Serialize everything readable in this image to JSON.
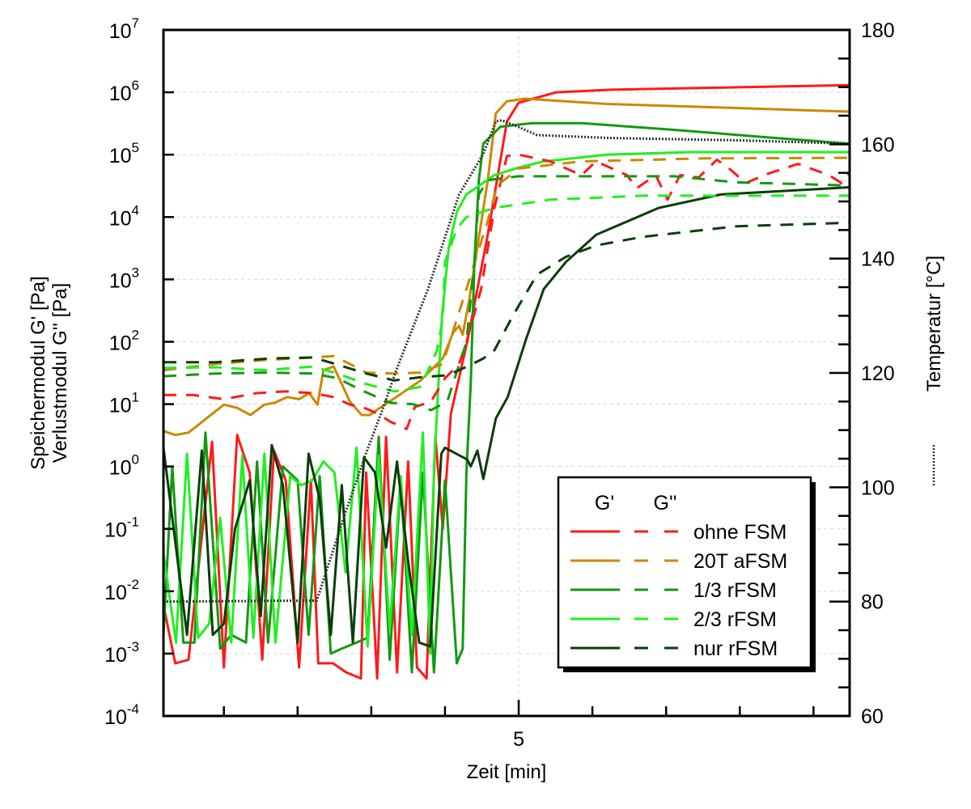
{
  "chart_data": {
    "type": "line",
    "title": "",
    "xlabel": "Zeit [min]",
    "ylabel_lines": [
      "Speichermodul G' [Pa]",
      "Verlustmodul G'' [Pa]"
    ],
    "y2label": "Temperatur [°C]",
    "xlim": [
      0.18,
      9.49
    ],
    "ylim": [
      0.0001,
      10000000
    ],
    "yscale": "log",
    "y2lim": [
      60,
      180
    ],
    "grid": "on (decade lines and x=5)",
    "x_ticks": [
      1,
      2,
      3,
      4,
      5,
      6,
      7,
      8,
      9
    ],
    "x_tick_labels": [
      {
        "value": 5,
        "label": "5"
      }
    ],
    "y_tick_exponents": [
      -4,
      -3,
      -2,
      -1,
      0,
      1,
      2,
      3,
      4,
      5,
      6,
      7
    ],
    "y_tick_base": "10",
    "y2_ticks": [
      60,
      80,
      100,
      120,
      140,
      160,
      180
    ],
    "legend": {
      "placement": "bottom-right",
      "header_solid": "G'",
      "header_dashed": "G''",
      "entries": [
        "ohne FSM",
        "20T aFSM",
        "1/3 rFSM",
        "2/3 rFSM",
        "nur rFSM"
      ]
    },
    "colors": {
      "ohne FSM": "#ff1a1a",
      "20T aFSM": "#cc8800",
      "1/3 rFSM": "#119911",
      "2/3 rFSM": "#22ee22",
      "nur rFSM": "#0a3d0a",
      "temperature": "#333333"
    },
    "series": [
      {
        "name": "ohne FSM",
        "modulus": "G'",
        "style": "solid",
        "x": [
          0.18,
          0.34,
          0.52,
          0.84,
          1.0,
          1.18,
          1.35,
          1.52,
          1.68,
          1.84,
          2.02,
          2.18,
          2.28,
          2.48,
          2.66,
          2.86,
          2.93,
          3.08,
          3.2,
          3.35,
          3.5,
          3.62,
          3.75,
          3.87,
          3.97,
          4.08,
          4.3,
          4.58,
          4.84,
          5.0,
          5.51,
          6.26,
          7.9,
          9.49
        ],
        "y": [
          0.006,
          0.0007,
          0.0008,
          2.5,
          0.0006,
          3.2,
          0.8,
          0.0008,
          1.8,
          0.6,
          0.0006,
          0.6,
          0.0007,
          0.0007,
          0.0005,
          0.0004,
          0.8,
          0.0004,
          3,
          0.0005,
          1.2,
          0.0006,
          0.0004,
          3,
          0.1,
          7,
          98,
          5200,
          340000,
          680000,
          1000000,
          1100000,
          1200000,
          1300000
        ]
      },
      {
        "name": "20T aFSM",
        "modulus": "G'",
        "style": "solid",
        "x": [
          0.18,
          0.34,
          0.52,
          1.0,
          1.18,
          1.36,
          1.55,
          1.69,
          1.86,
          2.02,
          2.16,
          2.27,
          2.35,
          2.49,
          2.71,
          2.87,
          2.98,
          3.09,
          3.34,
          3.67,
          3.97,
          4.11,
          4.19,
          4.24,
          4.33,
          4.58,
          4.69,
          4.84,
          5.09,
          6.19,
          7.95,
          9.49
        ],
        "y": [
          3.7,
          3.2,
          3.5,
          9.8,
          8.7,
          6.7,
          9.8,
          10.5,
          13,
          12,
          15,
          9.8,
          35,
          40,
          11,
          6.7,
          6.7,
          8.3,
          13,
          24,
          54,
          140,
          180,
          130,
          480,
          39000,
          460000,
          720000,
          790000,
          650000,
          560000,
          490000
        ]
      },
      {
        "name": "1/3 rFSM",
        "modulus": "G'",
        "style": "solid",
        "x": [
          0.18,
          0.3,
          0.45,
          0.6,
          0.75,
          0.95,
          1.1,
          1.3,
          1.45,
          1.6,
          1.8,
          2.0,
          2.15,
          2.3,
          2.45,
          2.6,
          2.8,
          2.95,
          3.1,
          3.25,
          3.4,
          3.55,
          3.7,
          3.85,
          4.0,
          4.16,
          4.24,
          4.29,
          4.35,
          4.4,
          4.46,
          4.52,
          4.75,
          5.18,
          5.85,
          7.11,
          8.37,
          9.49
        ],
        "y": [
          0.002,
          1.0,
          0.0015,
          0.0015,
          3.5,
          0.0012,
          0.002,
          0.0015,
          1.2,
          0.0015,
          1.0,
          0.6,
          0.002,
          0.7,
          0.001,
          0.0012,
          0.0015,
          0.0018,
          3,
          0.0008,
          0.6,
          0.0005,
          0.8,
          0.0005,
          0.6,
          0.0007,
          0.0012,
          0.8,
          22,
          2000,
          39000,
          150000,
          280000,
          320000,
          320000,
          250000,
          190000,
          150000
        ]
      },
      {
        "name": "2/3 rFSM",
        "modulus": "G'",
        "style": "solid",
        "x": [
          0.18,
          0.35,
          0.5,
          0.65,
          0.8,
          0.95,
          1.1,
          1.25,
          1.4,
          1.55,
          1.7,
          1.9,
          2.05,
          2.2,
          2.35,
          2.5,
          2.65,
          2.8,
          2.95,
          3.1,
          3.25,
          3.4,
          3.55,
          3.7,
          3.8,
          3.85,
          3.96,
          4.05,
          4.16,
          4.29,
          4.67,
          5.0,
          5.34,
          6.19,
          7.33,
          9.49
        ],
        "y": [
          0.04,
          0.0015,
          1.6,
          0.0018,
          0.003,
          0.15,
          0.0015,
          1.5,
          0.0018,
          1.6,
          0.0015,
          0.7,
          0.5,
          0.6,
          1.2,
          0.8,
          0.02,
          2,
          0.0013,
          1.5,
          0.0025,
          0.7,
          0.002,
          3.5,
          0.001,
          0.9,
          260,
          3200,
          12000,
          23000,
          47000,
          62000,
          78000,
          100000,
          110000,
          110000
        ]
      },
      {
        "name": "nur rFSM",
        "modulus": "G'",
        "style": "solid",
        "x": [
          0.18,
          0.35,
          0.5,
          0.7,
          0.85,
          1.0,
          1.15,
          1.35,
          1.5,
          1.65,
          1.8,
          2.0,
          2.15,
          2.3,
          2.45,
          2.6,
          2.75,
          2.9,
          3.05,
          3.2,
          3.35,
          3.5,
          3.65,
          3.8,
          3.95,
          4.0,
          4.3,
          4.35,
          4.44,
          4.52,
          4.69,
          4.85,
          5.1,
          5.34,
          5.64,
          6.05,
          6.9,
          7.74,
          9.49
        ],
        "y": [
          2,
          0.05,
          0.002,
          1.8,
          0.002,
          0.003,
          0.1,
          0.6,
          0.004,
          2.2,
          0.5,
          0.0015,
          1.6,
          0.3,
          0.002,
          0.5,
          0.0015,
          1.4,
          0.8,
          0.05,
          1.2,
          0.03,
          0.0015,
          0.0013,
          1.6,
          2,
          1.3,
          1.0,
          1.8,
          0.63,
          5.9,
          13,
          110,
          700,
          1900,
          5200,
          14000,
          23000,
          30000
        ]
      },
      {
        "name": "ohne FSM",
        "modulus": "G''",
        "style": "dashed",
        "x": [
          0.18,
          0.59,
          1.0,
          1.44,
          1.84,
          2.21,
          2.49,
          2.71,
          2.93,
          3.09,
          3.26,
          3.48,
          3.59,
          3.81,
          4.0,
          4.19,
          4.29,
          4.49,
          4.67,
          4.84,
          5.0,
          5.43,
          5.85,
          6.05,
          6.47,
          6.6,
          6.86,
          7.02,
          7.19,
          7.44,
          7.69,
          7.87,
          8.08,
          8.37,
          8.79,
          9.21,
          9.38,
          9.49
        ],
        "y": [
          14,
          14,
          12,
          15,
          16,
          15,
          13,
          9.8,
          8.5,
          7,
          5.2,
          4,
          9,
          11,
          26,
          44,
          98,
          700,
          14000,
          95000,
          100000,
          78000,
          47000,
          78000,
          47000,
          29000,
          47000,
          19000,
          47000,
          43000,
          83000,
          58000,
          35000,
          49000,
          71000,
          47000,
          35000,
          52000
        ]
      },
      {
        "name": "20T aFSM",
        "modulus": "G''",
        "style": "dashed",
        "x": [
          0.18,
          0.89,
          1.55,
          2.21,
          2.49,
          2.71,
          2.93,
          3.31,
          3.67,
          3.97,
          4.29,
          4.58,
          4.71,
          5.0,
          5.85,
          7.53,
          9.49
        ],
        "y": [
          35,
          44,
          51,
          56,
          59,
          44,
          32,
          31,
          32,
          44,
          700,
          8700,
          32000,
          60000,
          78000,
          87000,
          89000
        ]
      },
      {
        "name": "1/3 rFSM",
        "modulus": "G''",
        "style": "dashed",
        "x": [
          0.18,
          0.89,
          1.62,
          2.21,
          2.54,
          2.9,
          3.26,
          3.56,
          3.81,
          4.03,
          4.29,
          4.4,
          4.46,
          4.58,
          5.0,
          6.26,
          7.11,
          7.95,
          9.49
        ],
        "y": [
          28,
          31,
          32,
          31,
          26,
          16,
          10.5,
          10,
          8,
          11,
          98,
          2000,
          23000,
          39000,
          45000,
          45000,
          45000,
          36000,
          32000
        ]
      },
      {
        "name": "2/3 rFSM",
        "modulus": "G''",
        "style": "dashed",
        "x": [
          0.18,
          0.89,
          1.55,
          2.21,
          2.54,
          2.93,
          3.31,
          3.67,
          3.89,
          3.97,
          4.0,
          4.16,
          4.29,
          4.67,
          5.43,
          6.68,
          9.49
        ],
        "y": [
          38,
          39,
          35,
          40,
          31,
          21,
          16,
          19,
          72,
          230,
          1900,
          6500,
          10000,
          14000,
          19000,
          22000,
          22000
        ]
      },
      {
        "name": "nur rFSM",
        "modulus": "G''",
        "style": "dashed",
        "x": [
          0.18,
          0.89,
          1.62,
          2.21,
          2.57,
          2.93,
          3.31,
          3.67,
          4.03,
          4.3,
          4.52,
          4.67,
          4.92,
          5.25,
          5.64,
          6.05,
          6.68,
          7.95,
          9.49
        ],
        "y": [
          47,
          47,
          54,
          56,
          42,
          31,
          24,
          27,
          29,
          40,
          54,
          73,
          260,
          1200,
          2300,
          3500,
          4800,
          7100,
          8100
        ]
      }
    ],
    "temperature": {
      "name": "Temperatur",
      "axis": "right",
      "style": "dotted",
      "x": [
        0.18,
        2.26,
        2.65,
        2.93,
        3.15,
        3.34,
        3.77,
        4.19,
        4.52,
        4.69,
        4.77,
        5.0,
        5.25,
        6.26,
        7.95,
        9.49
      ],
      "y": [
        80,
        80.2,
        95.6,
        106,
        113.5,
        120.5,
        134.7,
        151.2,
        158.3,
        164,
        164.2,
        163,
        161.6,
        161.1,
        160.7,
        160.1
      ]
    }
  }
}
